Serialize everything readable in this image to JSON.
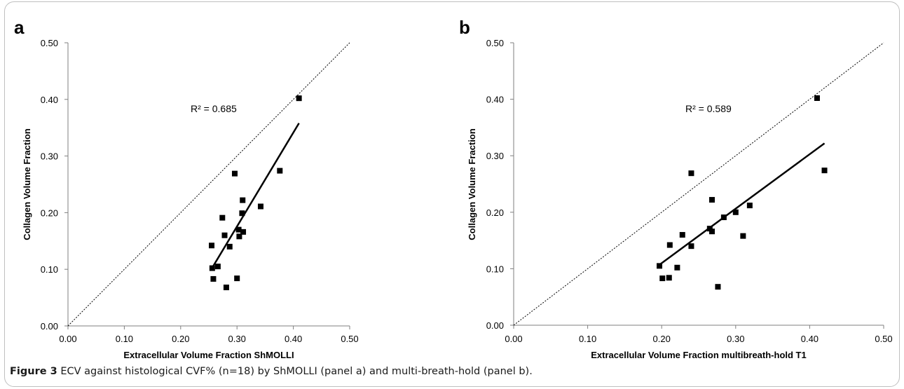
{
  "caption": {
    "label": "Figure 3",
    "text": "ECV against histological CVF% (n=18) by ShMOLLI (panel a) and multi-breath-hold (panel b)."
  },
  "chart_data": [
    {
      "type": "scatter",
      "panel_label": "a",
      "xlabel": "Extracellular Volume Fraction ShMOLLI",
      "ylabel": "Collagen Volume Fraction",
      "xlim": [
        0,
        0.5
      ],
      "ylim": [
        0,
        0.5
      ],
      "xticks": [
        "0.00",
        "0.10",
        "0.20",
        "0.30",
        "0.40",
        "0.50"
      ],
      "yticks": [
        "0.00",
        "0.10",
        "0.20",
        "0.30",
        "0.40",
        "0.50"
      ],
      "r_squared_label": "R² = 0.685",
      "identity_line": true,
      "grid": false,
      "points": [
        {
          "x": 0.41,
          "y": 0.402
        },
        {
          "x": 0.376,
          "y": 0.274
        },
        {
          "x": 0.296,
          "y": 0.269
        },
        {
          "x": 0.31,
          "y": 0.222
        },
        {
          "x": 0.342,
          "y": 0.211
        },
        {
          "x": 0.309,
          "y": 0.199
        },
        {
          "x": 0.274,
          "y": 0.191
        },
        {
          "x": 0.303,
          "y": 0.17
        },
        {
          "x": 0.311,
          "y": 0.166
        },
        {
          "x": 0.278,
          "y": 0.16
        },
        {
          "x": 0.304,
          "y": 0.158
        },
        {
          "x": 0.255,
          "y": 0.142
        },
        {
          "x": 0.287,
          "y": 0.14
        },
        {
          "x": 0.266,
          "y": 0.105
        },
        {
          "x": 0.256,
          "y": 0.102
        },
        {
          "x": 0.3,
          "y": 0.084
        },
        {
          "x": 0.258,
          "y": 0.083
        },
        {
          "x": 0.281,
          "y": 0.068
        }
      ],
      "trendline": {
        "x": [
          0.255,
          0.41
        ],
        "y": [
          0.101,
          0.358
        ]
      }
    },
    {
      "type": "scatter",
      "panel_label": "b",
      "xlabel": "Extracellular Volume Fraction multibreath-hold T1",
      "ylabel": "Collagen Volume Fraction",
      "xlim": [
        0,
        0.5
      ],
      "ylim": [
        0,
        0.5
      ],
      "xticks": [
        "0.00",
        "0.10",
        "0.20",
        "0.30",
        "0.40",
        "0.50"
      ],
      "yticks": [
        "0.00",
        "0.10",
        "0.20",
        "0.30",
        "0.40",
        "0.50"
      ],
      "r_squared_label": "R² = 0.589",
      "identity_line": true,
      "grid": false,
      "points": [
        {
          "x": 0.41,
          "y": 0.402
        },
        {
          "x": 0.42,
          "y": 0.274
        },
        {
          "x": 0.24,
          "y": 0.269
        },
        {
          "x": 0.268,
          "y": 0.222
        },
        {
          "x": 0.319,
          "y": 0.212
        },
        {
          "x": 0.3,
          "y": 0.2
        },
        {
          "x": 0.284,
          "y": 0.191
        },
        {
          "x": 0.265,
          "y": 0.171
        },
        {
          "x": 0.268,
          "y": 0.166
        },
        {
          "x": 0.228,
          "y": 0.16
        },
        {
          "x": 0.31,
          "y": 0.158
        },
        {
          "x": 0.211,
          "y": 0.142
        },
        {
          "x": 0.24,
          "y": 0.14
        },
        {
          "x": 0.197,
          "y": 0.105
        },
        {
          "x": 0.221,
          "y": 0.102
        },
        {
          "x": 0.21,
          "y": 0.084
        },
        {
          "x": 0.201,
          "y": 0.083
        },
        {
          "x": 0.276,
          "y": 0.068
        }
      ],
      "trendline": {
        "x": [
          0.197,
          0.42
        ],
        "y": [
          0.107,
          0.322
        ]
      }
    }
  ]
}
